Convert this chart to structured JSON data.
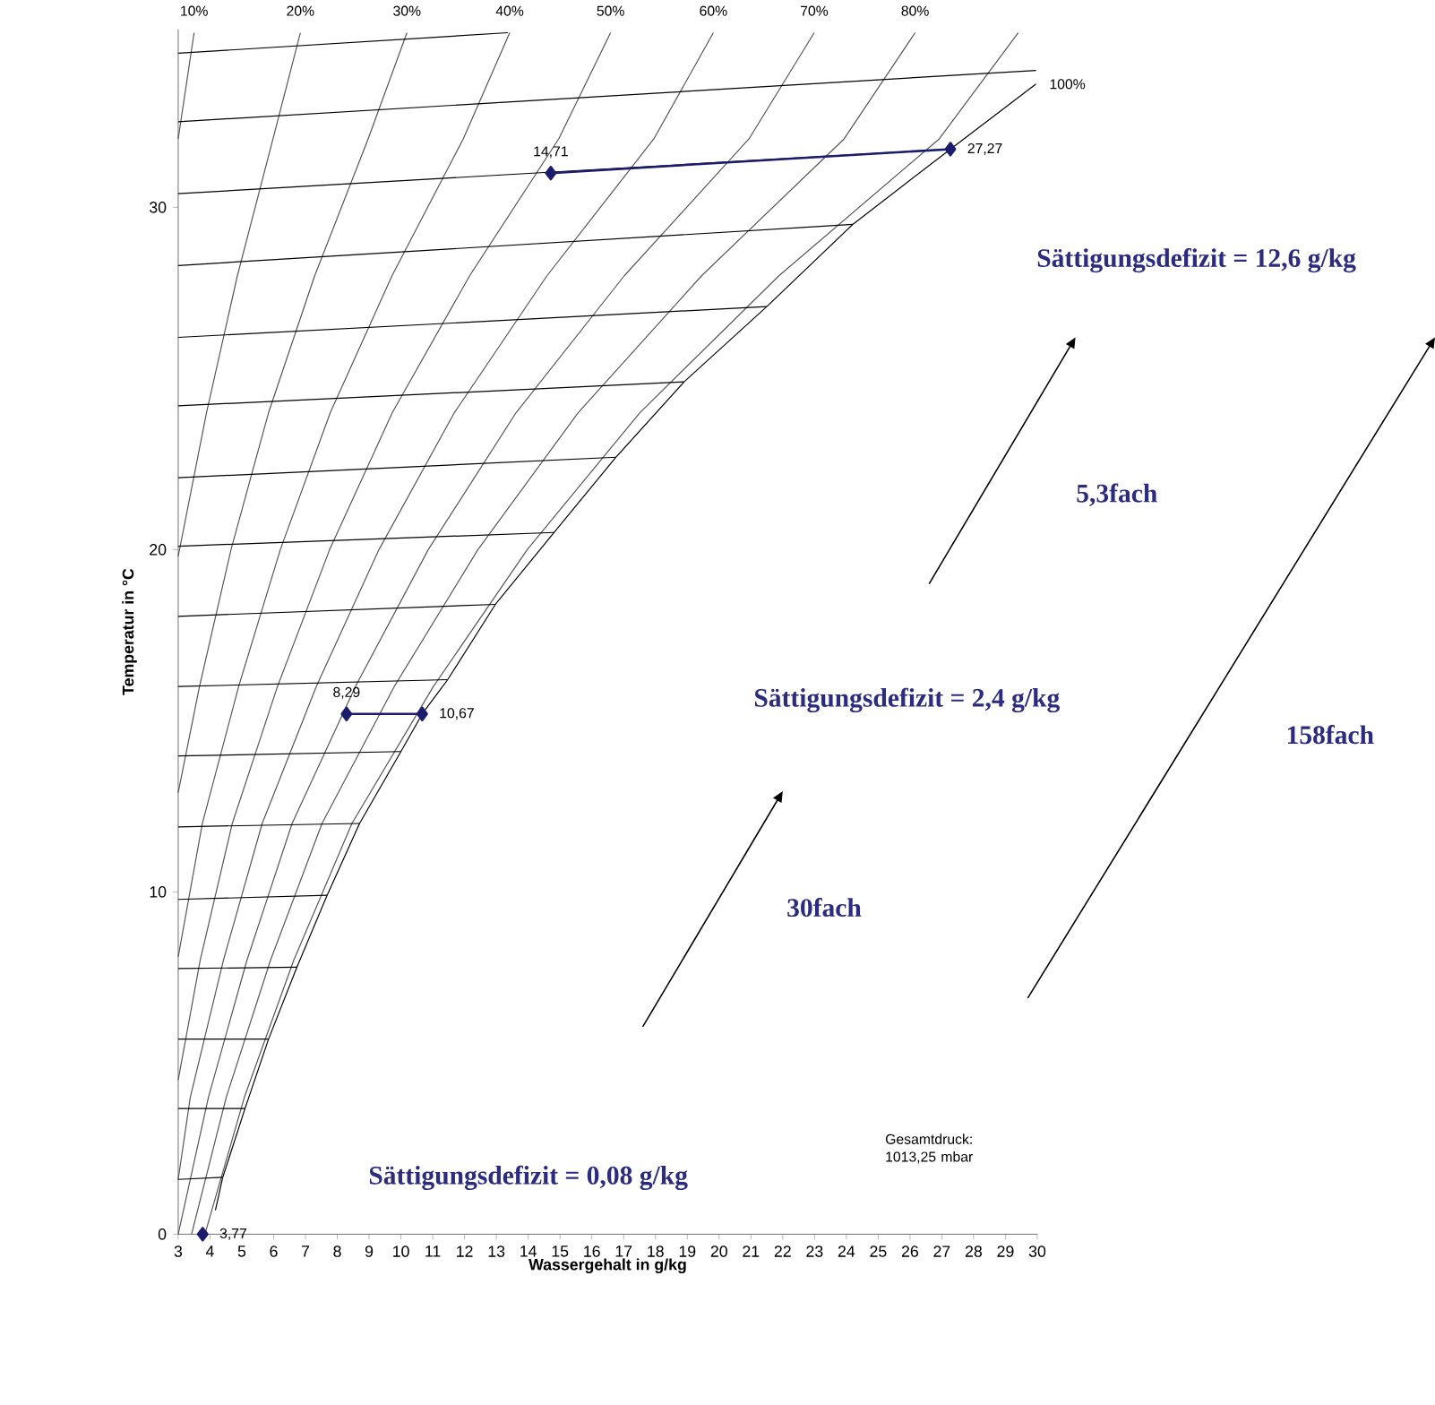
{
  "chart_data": {
    "type": "line",
    "xlabel": "Wassergehalt in g/kg",
    "ylabel": "Temperatur in °C",
    "xlim": [
      3,
      30
    ],
    "ylim": [
      0,
      35.2
    ],
    "xticks": [
      3,
      4,
      5,
      6,
      7,
      8,
      9,
      10,
      11,
      12,
      13,
      14,
      15,
      16,
      17,
      18,
      19,
      20,
      21,
      22,
      23,
      24,
      25,
      26,
      27,
      28,
      29,
      30
    ],
    "yticks": [
      0,
      10,
      20,
      30
    ],
    "marker": "none",
    "series": [
      {
        "name": "10%",
        "color": "#555555",
        "x": [
          3.0,
          3.5
        ],
        "values": [
          32.0,
          35.1
        ]
      },
      {
        "name": "20%",
        "color": "#555555",
        "x": [
          3.0,
          3.89,
          4.86,
          5.98,
          6.84
        ],
        "values": [
          19.8,
          24,
          28,
          32,
          35.1
        ]
      },
      {
        "name": "30%",
        "color": "#555555",
        "x": [
          3.0,
          3.67,
          4.66,
          5.84,
          7.29,
          8.97,
          10.19
        ],
        "values": [
          12.9,
          16,
          20,
          24,
          28,
          32,
          35.1
        ]
      },
      {
        "name": "40%",
        "color": "#555555",
        "x": [
          3.0,
          3.76,
          4.9,
          6.21,
          7.78,
          9.72,
          11.96,
          13.42
        ],
        "values": [
          8.1,
          12,
          16,
          20,
          24,
          28,
          32,
          35.1
        ]
      },
      {
        "name": "50%",
        "color": "#555555",
        "x": [
          3.0,
          3.69,
          4.7,
          6.12,
          7.76,
          9.73,
          12.16,
          14.96,
          16.59
        ],
        "values": [
          4.5,
          8,
          12,
          16,
          20,
          24,
          28,
          32,
          35.1
        ]
      },
      {
        "name": "60%",
        "color": "#555555",
        "x": [
          3.0,
          3.38,
          4.42,
          5.64,
          7.34,
          9.31,
          11.68,
          14.59,
          17.95,
          19.82
        ],
        "values": [
          1.6,
          4,
          8,
          12,
          16,
          20,
          24,
          28,
          32,
          35.1
        ]
      },
      {
        "name": "70%",
        "color": "#555555",
        "x": [
          3.0,
          3.95,
          5.16,
          6.58,
          8.57,
          10.86,
          13.62,
          17.02,
          20.94,
          22.99
        ],
        "values": [
          0,
          4,
          8,
          12,
          16,
          20,
          24,
          28,
          32,
          35.1
        ]
      },
      {
        "name": "80%",
        "color": "#555555",
        "x": [
          3.42,
          4.51,
          5.9,
          7.52,
          9.79,
          12.42,
          15.57,
          19.45,
          23.93,
          26.16
        ],
        "values": [
          0,
          4,
          8,
          12,
          16,
          20,
          24,
          28,
          32,
          35.1
        ]
      },
      {
        "color": "#555555",
        "x": [
          3.84,
          5.08,
          6.63,
          8.46,
          11.02,
          13.97,
          17.51,
          21.88,
          26.92,
          29.4
        ],
        "values": [
          0,
          4,
          8,
          12,
          16,
          20,
          24,
          28,
          32,
          35.1
        ]
      },
      {
        "name": "100%",
        "color": "#000000",
        "x": [
          4.17,
          4.4,
          5.1,
          5.84,
          6.73,
          7.68,
          8.7,
          10.0,
          10.67,
          11.47,
          12.97,
          14.81,
          16.76,
          18.9,
          21.5,
          24.2,
          27.27,
          29.96
        ],
        "values": [
          0.7,
          1.66,
          3.67,
          5.7,
          7.8,
          9.9,
          12.0,
          14.1,
          15.2,
          16.2,
          18.4,
          20.5,
          22.7,
          24.9,
          27.1,
          29.5,
          31.7,
          33.6
        ]
      },
      {
        "color": "#000000",
        "x": [
          3,
          13.36
        ],
        "values": [
          34.5,
          35.1
        ]
      },
      {
        "color": "#000000",
        "x": [
          3,
          29.96
        ],
        "values": [
          32.5,
          34.0
        ]
      },
      {
        "color": "#000000",
        "x": [
          3,
          27.27
        ],
        "values": [
          30.4,
          31.7
        ]
      },
      {
        "color": "#000000",
        "x": [
          3,
          24.2
        ],
        "values": [
          28.3,
          29.5
        ]
      },
      {
        "color": "#000000",
        "x": [
          3,
          21.5
        ],
        "values": [
          26.2,
          27.1
        ]
      },
      {
        "color": "#000000",
        "x": [
          3,
          18.9
        ],
        "values": [
          24.2,
          24.9
        ]
      },
      {
        "color": "#000000",
        "x": [
          3,
          16.76
        ],
        "values": [
          22.1,
          22.7
        ]
      },
      {
        "color": "#000000",
        "x": [
          3,
          14.81
        ],
        "values": [
          20.1,
          20.5
        ]
      },
      {
        "color": "#000000",
        "x": [
          3,
          12.97
        ],
        "values": [
          18.05,
          18.4
        ]
      },
      {
        "color": "#000000",
        "x": [
          3,
          11.47
        ],
        "values": [
          16.0,
          16.2
        ]
      },
      {
        "color": "#000000",
        "x": [
          3,
          10.0
        ],
        "values": [
          13.97,
          14.1
        ]
      },
      {
        "color": "#000000",
        "x": [
          3,
          8.7
        ],
        "values": [
          11.9,
          12.0
        ]
      },
      {
        "color": "#000000",
        "x": [
          3,
          7.68
        ],
        "values": [
          9.78,
          9.9
        ]
      },
      {
        "color": "#000000",
        "x": [
          3,
          6.73
        ],
        "values": [
          7.76,
          7.8
        ]
      },
      {
        "color": "#000000",
        "x": [
          3,
          5.84
        ],
        "values": [
          5.7,
          5.7
        ]
      },
      {
        "color": "#000000",
        "x": [
          3,
          5.1
        ],
        "values": [
          3.67,
          3.67
        ]
      },
      {
        "color": "#000000",
        "x": [
          3,
          4.4
        ],
        "values": [
          1.6,
          1.66
        ]
      },
      {
        "color": "#1c1c6e",
        "marker": "diamond",
        "x": [
          3.77
        ],
        "values": [
          0
        ]
      },
      {
        "color": "#1c1c6e",
        "marker": "diamond",
        "x": [
          8.29,
          10.67
        ],
        "values": [
          15.2,
          15.2
        ]
      },
      {
        "color": "#1c1c6e",
        "marker": "diamond",
        "x": [
          14.71,
          27.27
        ],
        "values": [
          31.0,
          31.7
        ]
      }
    ],
    "annotations": [
      {
        "text": "3,77",
        "x": 3.77,
        "y": 0
      },
      {
        "text": "8,29",
        "x": 8.29,
        "y": 15.2
      },
      {
        "text": "10,67",
        "x": 10.67,
        "y": 15.2
      },
      {
        "text": "14,71",
        "x": 14.71,
        "y": 31.0
      },
      {
        "text": "27,27",
        "x": 27.27,
        "y": 31.7
      },
      "Sättigungsdefizit = 12,6 g/kg",
      "5,3fach",
      "Sättigungsdefizit = 2,4 g/kg",
      "158fach",
      "30fach",
      "Sättigungsdefizit = 0,08 g/kg",
      "Gesamtdruck: 1013,25 mbar"
    ]
  }
}
